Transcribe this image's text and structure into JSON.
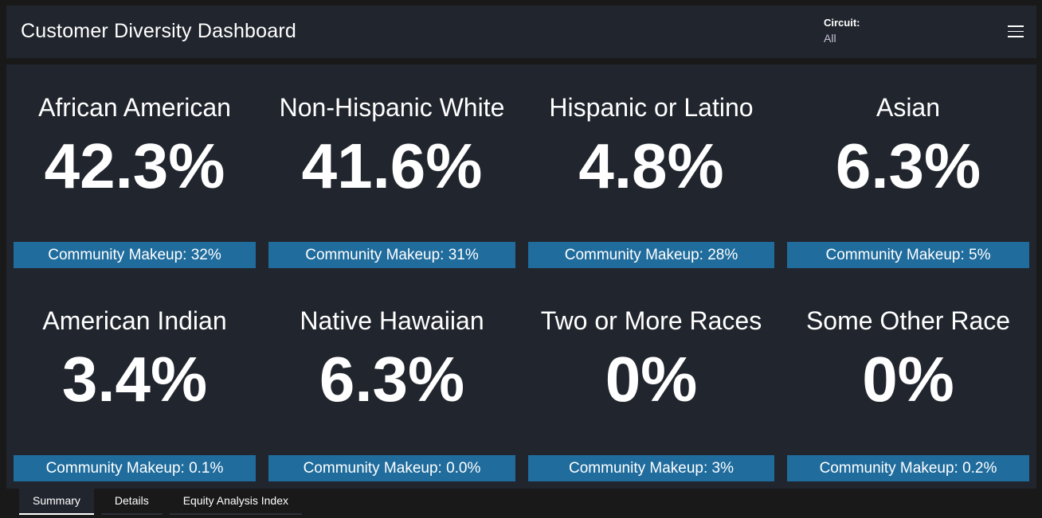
{
  "header": {
    "title": "Customer Diversity Dashboard",
    "circuit_label": "Circuit:",
    "circuit_value": "All",
    "menu_icon": "hamburger-menu-icon"
  },
  "colors": {
    "background": "#191919",
    "panel": "#21252d",
    "accent_bar": "#1f6c9d"
  },
  "cards": [
    {
      "name": "African American",
      "value": "42.3%",
      "community": "Community Makeup: 32%"
    },
    {
      "name": "Non-Hispanic White",
      "value": "41.6%",
      "community": "Community Makeup: 31%"
    },
    {
      "name": "Hispanic or Latino",
      "value": "4.8%",
      "community": "Community Makeup: 28%"
    },
    {
      "name": "Asian",
      "value": "6.3%",
      "community": "Community Makeup: 5%"
    },
    {
      "name": "American Indian",
      "value": "3.4%",
      "community": "Community Makeup: 0.1%"
    },
    {
      "name": "Native Hawaiian",
      "value": "6.3%",
      "community": "Community Makeup: 0.0%"
    },
    {
      "name": "Two or More Races",
      "value": "0%",
      "community": "Community Makeup: 3%"
    },
    {
      "name": "Some Other Race",
      "value": "0%",
      "community": "Community Makeup: 0.2%"
    }
  ],
  "tabs": [
    {
      "label": "Summary",
      "active": true
    },
    {
      "label": "Details"
    },
    {
      "label": "Equity Analysis Index"
    }
  ]
}
